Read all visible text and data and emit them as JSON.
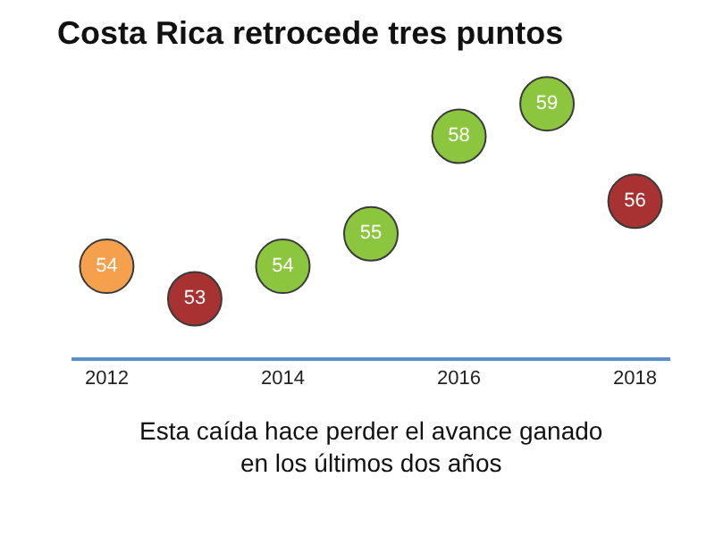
{
  "chart_data": {
    "type": "scatter",
    "title": "Costa Rica retrocede tres puntos",
    "x": [
      2012,
      2013,
      2014,
      2015,
      2016,
      2017,
      2018
    ],
    "values": [
      54,
      53,
      54,
      55,
      58,
      59,
      56
    ],
    "colors": [
      "#f5a04c",
      "#a83232",
      "#8cc63f",
      "#8cc63f",
      "#8cc63f",
      "#8cc63f",
      "#a83232"
    ],
    "data_labels": true,
    "marker": "circle",
    "xlim": [
      2011.6,
      2018.4
    ],
    "xticks": [
      2012,
      2014,
      2016,
      2018
    ],
    "tick_labels": "x",
    "legend": false,
    "annotations": [
      "Esta caída hace perder el avance ganado\nen los últimos dos años"
    ]
  }
}
